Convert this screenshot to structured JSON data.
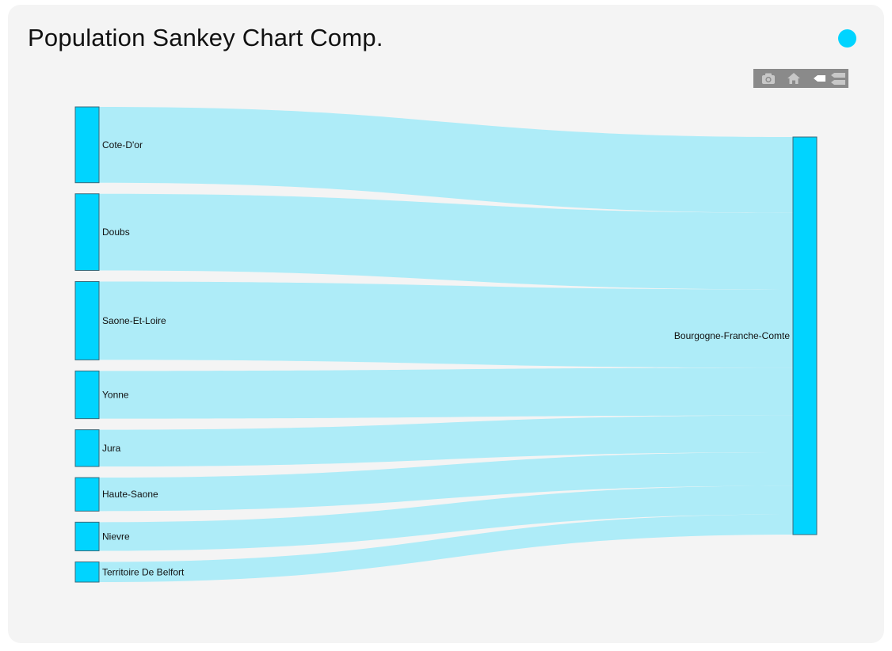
{
  "card": {
    "title": "Population Sankey Chart Comp."
  },
  "colors": {
    "node": "#00d4ff",
    "node_stroke": "#3b6a7a",
    "link": "#aeecf8",
    "dot": "#00d4ff",
    "modebar_bg": "#8a8a8a",
    "modebar_icon": "#c8c8c8"
  },
  "modebar": {
    "buttons": [
      {
        "name": "camera-icon"
      },
      {
        "name": "home-icon"
      },
      {
        "name": "hover-closest-icon"
      },
      {
        "name": "hover-compare-icon"
      }
    ]
  },
  "chart_data": {
    "type": "sankey",
    "nodes": [
      {
        "label": "Cote-D'or",
        "value": 534
      },
      {
        "label": "Doubs",
        "value": 540
      },
      {
        "label": "Saone-Et-Loire",
        "value": 552
      },
      {
        "label": "Yonne",
        "value": 336
      },
      {
        "label": "Jura",
        "value": 259
      },
      {
        "label": "Haute-Saone",
        "value": 236
      },
      {
        "label": "Nievre",
        "value": 202
      },
      {
        "label": "Territoire De Belfort",
        "value": 142
      }
    ],
    "target": {
      "label": "Bourgogne-Franche-Comte"
    }
  }
}
